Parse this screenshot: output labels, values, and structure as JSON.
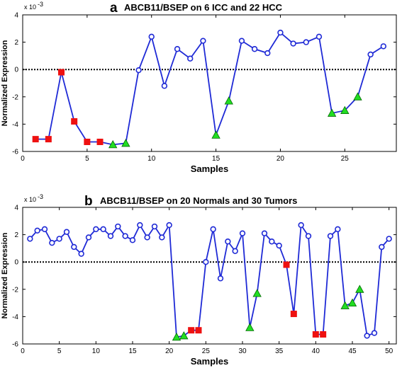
{
  "colors": {
    "line": "#1f2ad6",
    "circle": "#1f2ad6",
    "square": "#ee1111",
    "triangle": "#22dd22",
    "zero_line": "#000000"
  },
  "chart_data": [
    {
      "type": "line",
      "panel_label": "a",
      "title": "ABCB11/BSEP on 6 ICC and 22 HCC",
      "xlabel": "Samples",
      "ylabel": "Normalized Expression",
      "y_multiplier": "x 10",
      "y_exponent": "-3",
      "xlim": [
        0,
        29
      ],
      "ylim": [
        -6,
        4
      ],
      "xticks": [
        0,
        5,
        10,
        15,
        20,
        25
      ],
      "yticks": [
        -6,
        -4,
        -2,
        0,
        2,
        4
      ],
      "zero_reference_line": true,
      "x": [
        1,
        2,
        3,
        4,
        5,
        6,
        7,
        8,
        9,
        10,
        11,
        12,
        13,
        14,
        15,
        16,
        17,
        18,
        19,
        20,
        21,
        22,
        23,
        24,
        25,
        26,
        27,
        28
      ],
      "values": [
        -5.1,
        -5.1,
        -0.2,
        -3.8,
        -5.3,
        -5.3,
        -5.5,
        -5.4,
        -0.05,
        2.4,
        -1.2,
        1.5,
        0.8,
        2.1,
        -4.8,
        -2.3,
        2.1,
        1.5,
        1.2,
        2.7,
        1.9,
        2.0,
        2.4,
        -3.2,
        -3.0,
        -2.0,
        1.1,
        1.7
      ],
      "markers": [
        "square",
        "square",
        "square",
        "square",
        "square",
        "square",
        "triangle",
        "triangle",
        "circle",
        "circle",
        "circle",
        "circle",
        "circle",
        "circle",
        "triangle",
        "triangle",
        "circle",
        "circle",
        "circle",
        "circle",
        "circle",
        "circle",
        "circle",
        "triangle",
        "triangle",
        "triangle",
        "circle",
        "circle"
      ]
    },
    {
      "type": "line",
      "panel_label": "b",
      "title": "ABCB11/BSEP on 20 Normals and 30 Tumors",
      "xlabel": "Samples",
      "ylabel": "Normalized Expression",
      "y_multiplier": "x 10",
      "y_exponent": "-3",
      "xlim": [
        0,
        51
      ],
      "ylim": [
        -6,
        4
      ],
      "xticks": [
        0,
        5,
        10,
        15,
        20,
        25,
        30,
        35,
        40,
        45,
        50
      ],
      "yticks": [
        -6,
        -4,
        -2,
        0,
        2,
        4
      ],
      "zero_reference_line": true,
      "x": [
        1,
        2,
        3,
        4,
        5,
        6,
        7,
        8,
        9,
        10,
        11,
        12,
        13,
        14,
        15,
        16,
        17,
        18,
        19,
        20,
        21,
        22,
        23,
        24,
        25,
        26,
        27,
        28,
        29,
        30,
        31,
        32,
        33,
        34,
        35,
        36,
        37,
        38,
        39,
        40,
        41,
        42,
        43,
        44,
        45,
        46,
        47,
        48,
        49,
        50
      ],
      "values": [
        1.7,
        2.3,
        2.4,
        1.4,
        1.7,
        2.2,
        1.1,
        0.6,
        1.8,
        2.4,
        2.4,
        1.9,
        2.6,
        1.9,
        1.6,
        2.7,
        1.8,
        2.6,
        1.8,
        2.7,
        -5.5,
        -5.4,
        -5.0,
        -5.0,
        0.0,
        2.4,
        -1.2,
        1.5,
        0.8,
        2.1,
        -4.8,
        -2.3,
        2.1,
        1.5,
        1.2,
        -0.2,
        -3.8,
        2.7,
        1.9,
        -5.3,
        -5.3,
        1.9,
        2.4,
        -3.2,
        -3.0,
        -2.0,
        -5.4,
        -5.2,
        1.1,
        1.7
      ],
      "markers": [
        "circle",
        "circle",
        "circle",
        "circle",
        "circle",
        "circle",
        "circle",
        "circle",
        "circle",
        "circle",
        "circle",
        "circle",
        "circle",
        "circle",
        "circle",
        "circle",
        "circle",
        "circle",
        "circle",
        "circle",
        "triangle",
        "triangle",
        "square",
        "square",
        "circle",
        "circle",
        "circle",
        "circle",
        "circle",
        "circle",
        "triangle",
        "triangle",
        "circle",
        "circle",
        "circle",
        "square",
        "square",
        "circle",
        "circle",
        "square",
        "square",
        "circle",
        "circle",
        "triangle",
        "triangle",
        "triangle",
        "circle",
        "circle",
        "circle",
        "circle"
      ]
    }
  ]
}
